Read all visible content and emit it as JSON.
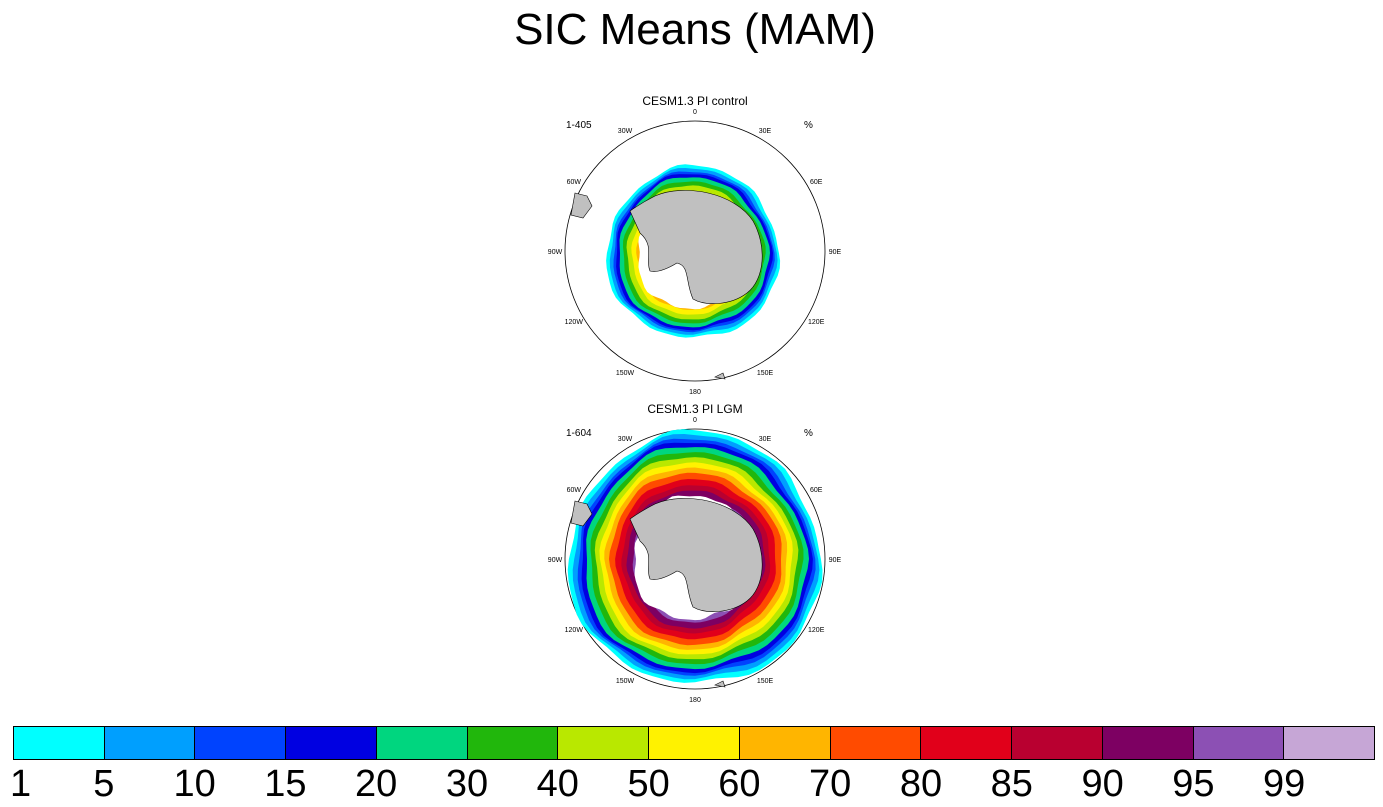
{
  "title": "SIC Means (MAM)",
  "colors": {
    "land": "#c0c0c0",
    "shelf": "#ffffff",
    "levels": [
      "#00ffff",
      "#009ffe",
      "#0043fe",
      "#0000e1",
      "#00d67f",
      "#21b70c",
      "#b9e800",
      "#fff200",
      "#ffb500",
      "#ff4b00",
      "#e1001a",
      "#b90030",
      "#7d0062",
      "#8c50b4",
      "#c6a6d6"
    ]
  },
  "panels": [
    {
      "title": "CESM1.3 PI control",
      "left_string": "1-405",
      "right_string": "%",
      "ice_profile": "control"
    },
    {
      "title": "CESM1.3 PI LGM",
      "left_string": "1-604",
      "right_string": "%",
      "ice_profile": "lgm"
    }
  ],
  "longitude_labels": [
    "0",
    "30E",
    "60E",
    "90E",
    "120E",
    "150E",
    "180",
    "150W",
    "120W",
    "90W",
    "60W",
    "30W"
  ],
  "colorbar": {
    "labels": [
      "1",
      "5",
      "10",
      "15",
      "20",
      "30",
      "40",
      "50",
      "60",
      "70",
      "80",
      "85",
      "90",
      "95",
      "99"
    ]
  }
}
